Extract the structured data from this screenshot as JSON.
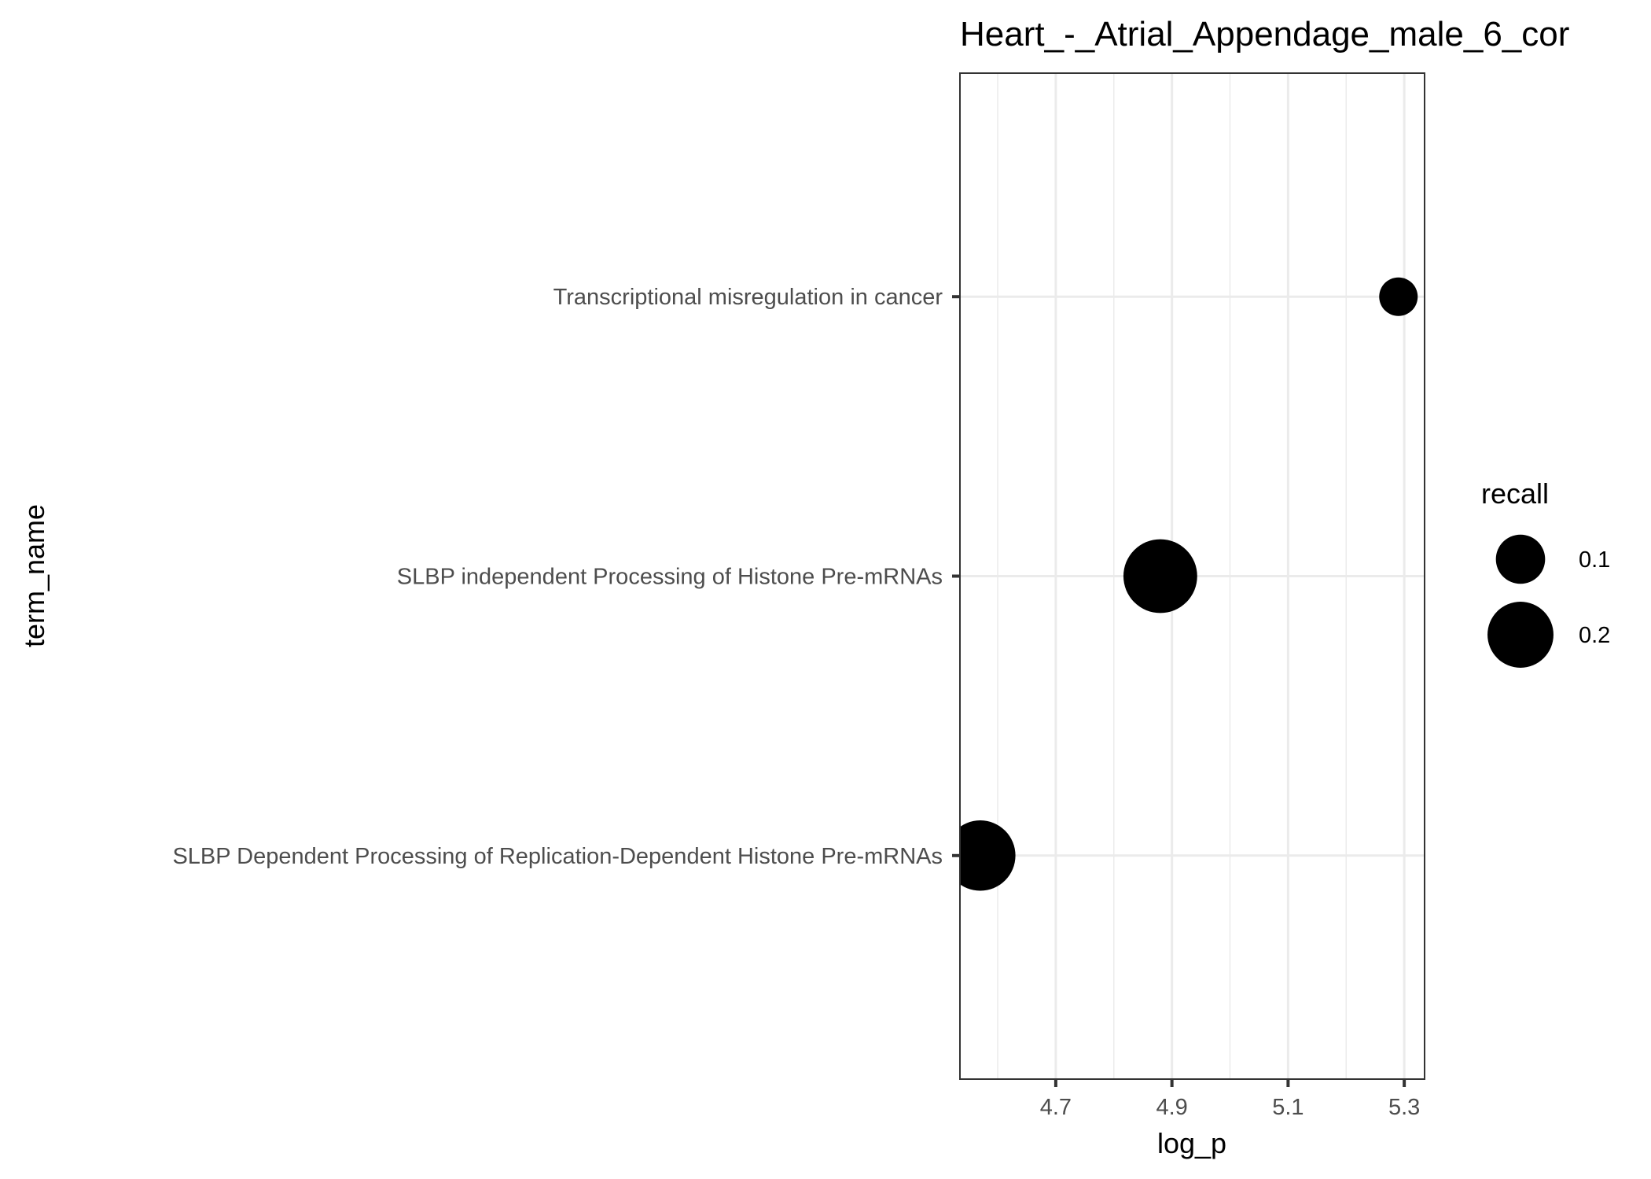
{
  "chart_data": {
    "type": "scatter",
    "title": "Heart_-_Atrial_Appendage_male_6_cor",
    "xlabel": "log_p",
    "ylabel": "term_name",
    "xlim": [
      4.535,
      5.335
    ],
    "x_ticks": [
      4.7,
      4.9,
      5.1,
      5.3
    ],
    "x_tick_labels": [
      "4.7",
      "4.9",
      "5.1",
      "5.3"
    ],
    "categories": [
      "SLBP Dependent Processing of Replication-Dependent Histone Pre-mRNAs",
      "SLBP independent Processing of Histone Pre-mRNAs",
      "Transcriptional misregulation in cancer"
    ],
    "points": [
      {
        "term_name": "Transcriptional misregulation in cancer",
        "log_p": 5.29,
        "recall": 0.06
      },
      {
        "term_name": "SLBP independent Processing of Histone Pre-mRNAs",
        "log_p": 4.88,
        "recall": 0.22
      },
      {
        "term_name": "SLBP Dependent Processing of Replication-Dependent Histone Pre-mRNAs",
        "log_p": 4.57,
        "recall": 0.2
      }
    ],
    "size_legend": {
      "title": "recall",
      "entries": [
        {
          "label": "0.1",
          "value": 0.1
        },
        {
          "label": "0.2",
          "value": 0.2
        }
      ]
    },
    "point_color": "#000000",
    "grid": true,
    "legend_position": "right"
  }
}
